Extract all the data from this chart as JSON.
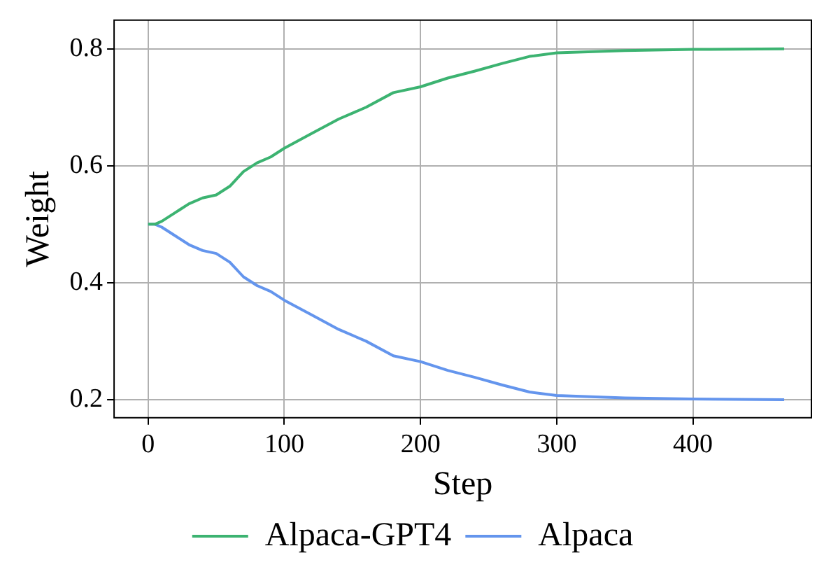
{
  "chart_data": {
    "type": "line",
    "xlabel": "Step",
    "ylabel": "Weight",
    "x": [
      0,
      5,
      10,
      20,
      30,
      40,
      50,
      60,
      70,
      80,
      90,
      100,
      120,
      140,
      160,
      180,
      200,
      220,
      240,
      260,
      280,
      300,
      350,
      400,
      467
    ],
    "series": [
      {
        "name": "Alpaca-GPT4",
        "color": "#3cb371",
        "values": [
          0.5,
          0.5,
          0.505,
          0.52,
          0.535,
          0.545,
          0.55,
          0.565,
          0.59,
          0.605,
          0.615,
          0.63,
          0.655,
          0.68,
          0.7,
          0.725,
          0.735,
          0.75,
          0.762,
          0.775,
          0.787,
          0.793,
          0.797,
          0.799,
          0.8
        ]
      },
      {
        "name": "Alpaca",
        "color": "#6495ed",
        "values": [
          0.5,
          0.5,
          0.495,
          0.48,
          0.465,
          0.455,
          0.45,
          0.435,
          0.41,
          0.395,
          0.385,
          0.37,
          0.345,
          0.32,
          0.3,
          0.275,
          0.265,
          0.25,
          0.238,
          0.225,
          0.213,
          0.207,
          0.203,
          0.201,
          0.2
        ]
      }
    ],
    "xlim": [
      -25,
      487
    ],
    "xticks": [
      0,
      100,
      200,
      300,
      400
    ],
    "ylim": [
      0.169,
      0.849
    ],
    "yticks": [
      0.2,
      0.4,
      0.6,
      0.8
    ],
    "grid": true,
    "legend": "bottom",
    "marker": "none",
    "line_style": "solid"
  }
}
